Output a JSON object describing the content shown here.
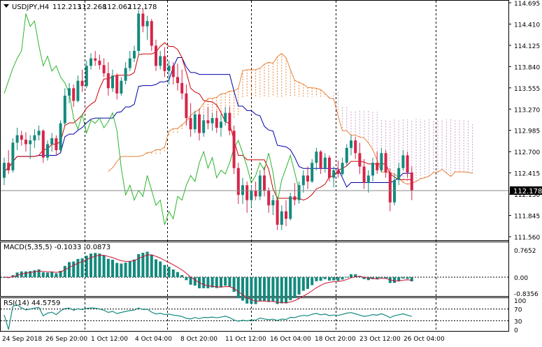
{
  "header": {
    "symbol": "USDJPY,H4",
    "open": "112.213",
    "high": "112.268",
    "low": "112.062",
    "close": "112.178"
  },
  "current_price_label": "112.178",
  "price_axis": {
    "labels": [
      "114.695",
      "114.410",
      "114.125",
      "113.840",
      "113.555",
      "113.270",
      "112.985",
      "112.700",
      "112.415",
      "112.130",
      "111.845",
      "111.560"
    ]
  },
  "time_axis": {
    "labels": [
      "24 Sep 2018",
      "26 Sep 20:00",
      "1 Oct 12:00",
      "4 Oct 04:00",
      "8 Oct 20:00",
      "11 Oct 12:00",
      "16 Oct 04:00",
      "18 Oct 20:00",
      "23 Oct 12:00",
      "26 Oct 04:00"
    ]
  },
  "macd": {
    "label": "MACD(5,35,5) -0.1033 -0.0873",
    "axis_labels": [
      "0.7652",
      "0.00",
      "-0.8356"
    ]
  },
  "rsi": {
    "label": "RSI(14) 44.5759",
    "axis_labels": [
      "100",
      "70",
      "30",
      "0"
    ]
  },
  "colors": {
    "bull_candle": "#138a7d",
    "bear_candle": "#d6254a",
    "tenkan": "#cc0000",
    "kijun": "#0000aa",
    "chikou": "#2bb52b",
    "cloud_a": "#e8833a",
    "cloud_b": "#c9a0c9",
    "macd_hist": "#138a7d",
    "macd_signal": "#cc1133",
    "rsi_line": "#138a7d"
  },
  "chart_data": {
    "type": "candlestick",
    "symbol": "USDJPY",
    "timeframe": "H4",
    "ylim": [
      111.56,
      114.695
    ],
    "last_close": 112.178,
    "bars": [
      {
        "o": 112.35,
        "h": 112.62,
        "l": 112.25,
        "c": 112.55
      },
      {
        "o": 112.55,
        "h": 112.72,
        "l": 112.4,
        "c": 112.45
      },
      {
        "o": 112.45,
        "h": 112.88,
        "l": 112.42,
        "c": 112.82
      },
      {
        "o": 112.82,
        "h": 113.02,
        "l": 112.72,
        "c": 112.92
      },
      {
        "o": 112.92,
        "h": 112.98,
        "l": 112.78,
        "c": 112.86
      },
      {
        "o": 112.86,
        "h": 112.96,
        "l": 112.7,
        "c": 112.8
      },
      {
        "o": 112.8,
        "h": 112.92,
        "l": 112.6,
        "c": 112.85
      },
      {
        "o": 112.85,
        "h": 113.0,
        "l": 112.75,
        "c": 112.92
      },
      {
        "o": 112.92,
        "h": 113.05,
        "l": 112.85,
        "c": 112.98
      },
      {
        "o": 112.98,
        "h": 113.0,
        "l": 112.55,
        "c": 112.62
      },
      {
        "o": 112.62,
        "h": 112.85,
        "l": 112.58,
        "c": 112.8
      },
      {
        "o": 112.8,
        "h": 112.95,
        "l": 112.7,
        "c": 112.88
      },
      {
        "o": 112.88,
        "h": 112.92,
        "l": 112.65,
        "c": 112.72
      },
      {
        "o": 112.72,
        "h": 113.12,
        "l": 112.7,
        "c": 113.08
      },
      {
        "o": 113.08,
        "h": 113.55,
        "l": 113.05,
        "c": 113.45
      },
      {
        "o": 113.45,
        "h": 113.62,
        "l": 113.35,
        "c": 113.55
      },
      {
        "o": 113.55,
        "h": 113.6,
        "l": 113.3,
        "c": 113.38
      },
      {
        "o": 113.38,
        "h": 113.72,
        "l": 113.36,
        "c": 113.65
      },
      {
        "o": 113.65,
        "h": 113.8,
        "l": 113.5,
        "c": 113.58
      },
      {
        "o": 113.58,
        "h": 113.92,
        "l": 113.55,
        "c": 113.85
      },
      {
        "o": 113.85,
        "h": 114.02,
        "l": 113.8,
        "c": 113.95
      },
      {
        "o": 113.95,
        "h": 114.05,
        "l": 113.85,
        "c": 113.92
      },
      {
        "o": 113.92,
        "h": 114.0,
        "l": 113.8,
        "c": 113.86
      },
      {
        "o": 113.86,
        "h": 113.95,
        "l": 113.7,
        "c": 113.75
      },
      {
        "o": 113.75,
        "h": 113.9,
        "l": 113.45,
        "c": 113.55
      },
      {
        "o": 113.55,
        "h": 113.8,
        "l": 113.5,
        "c": 113.72
      },
      {
        "o": 113.72,
        "h": 113.75,
        "l": 113.4,
        "c": 113.48
      },
      {
        "o": 113.48,
        "h": 113.7,
        "l": 113.45,
        "c": 113.65
      },
      {
        "o": 113.65,
        "h": 113.9,
        "l": 113.6,
        "c": 113.82
      },
      {
        "o": 113.82,
        "h": 114.05,
        "l": 113.78,
        "c": 113.95
      },
      {
        "o": 113.95,
        "h": 114.12,
        "l": 113.9,
        "c": 114.05
      },
      {
        "o": 114.05,
        "h": 114.6,
        "l": 114.0,
        "c": 114.55
      },
      {
        "o": 114.55,
        "h": 114.62,
        "l": 114.3,
        "c": 114.38
      },
      {
        "o": 114.38,
        "h": 114.52,
        "l": 114.2,
        "c": 114.45
      },
      {
        "o": 114.45,
        "h": 114.48,
        "l": 114.05,
        "c": 114.12
      },
      {
        "o": 114.12,
        "h": 114.2,
        "l": 113.78,
        "c": 113.85
      },
      {
        "o": 113.85,
        "h": 114.05,
        "l": 113.8,
        "c": 113.98
      },
      {
        "o": 113.98,
        "h": 114.1,
        "l": 113.7,
        "c": 113.78
      },
      {
        "o": 113.78,
        "h": 113.92,
        "l": 113.6,
        "c": 113.85
      },
      {
        "o": 113.85,
        "h": 113.9,
        "l": 113.6,
        "c": 113.7
      },
      {
        "o": 113.7,
        "h": 113.88,
        "l": 113.52,
        "c": 113.62
      },
      {
        "o": 113.62,
        "h": 113.8,
        "l": 113.4,
        "c": 113.48
      },
      {
        "o": 113.48,
        "h": 113.6,
        "l": 113.05,
        "c": 113.15
      },
      {
        "o": 113.15,
        "h": 113.35,
        "l": 112.9,
        "c": 113.0
      },
      {
        "o": 113.0,
        "h": 113.25,
        "l": 112.95,
        "c": 113.2
      },
      {
        "o": 113.2,
        "h": 113.28,
        "l": 112.85,
        "c": 112.95
      },
      {
        "o": 112.95,
        "h": 113.2,
        "l": 112.9,
        "c": 113.12
      },
      {
        "o": 113.12,
        "h": 113.3,
        "l": 113.0,
        "c": 113.08
      },
      {
        "o": 113.08,
        "h": 113.22,
        "l": 112.98,
        "c": 113.15
      },
      {
        "o": 113.15,
        "h": 113.25,
        "l": 112.95,
        "c": 113.02
      },
      {
        "o": 113.02,
        "h": 113.2,
        "l": 112.9,
        "c": 113.1
      },
      {
        "o": 113.1,
        "h": 113.3,
        "l": 113.05,
        "c": 113.22
      },
      {
        "o": 113.22,
        "h": 113.3,
        "l": 112.92,
        "c": 112.98
      },
      {
        "o": 112.98,
        "h": 113.05,
        "l": 112.4,
        "c": 112.48
      },
      {
        "o": 112.48,
        "h": 112.55,
        "l": 112.0,
        "c": 112.12
      },
      {
        "o": 112.12,
        "h": 112.35,
        "l": 112.0,
        "c": 112.25
      },
      {
        "o": 112.25,
        "h": 112.3,
        "l": 111.88,
        "c": 112.05
      },
      {
        "o": 112.05,
        "h": 112.25,
        "l": 111.95,
        "c": 112.18
      },
      {
        "o": 112.18,
        "h": 112.3,
        "l": 112.05,
        "c": 112.1
      },
      {
        "o": 112.1,
        "h": 112.45,
        "l": 112.05,
        "c": 112.38
      },
      {
        "o": 112.38,
        "h": 112.5,
        "l": 112.1,
        "c": 112.18
      },
      {
        "o": 112.18,
        "h": 112.22,
        "l": 111.88,
        "c": 111.98
      },
      {
        "o": 111.98,
        "h": 112.12,
        "l": 111.85,
        "c": 112.05
      },
      {
        "o": 112.05,
        "h": 112.1,
        "l": 111.65,
        "c": 111.72
      },
      {
        "o": 111.72,
        "h": 111.98,
        "l": 111.65,
        "c": 111.9
      },
      {
        "o": 111.9,
        "h": 112.05,
        "l": 111.7,
        "c": 111.8
      },
      {
        "o": 111.8,
        "h": 112.15,
        "l": 111.78,
        "c": 112.1
      },
      {
        "o": 112.1,
        "h": 112.28,
        "l": 111.98,
        "c": 112.05
      },
      {
        "o": 112.05,
        "h": 112.3,
        "l": 112.0,
        "c": 112.25
      },
      {
        "o": 112.25,
        "h": 112.45,
        "l": 112.15,
        "c": 112.38
      },
      {
        "o": 112.38,
        "h": 112.5,
        "l": 112.2,
        "c": 112.3
      },
      {
        "o": 112.3,
        "h": 112.6,
        "l": 112.28,
        "c": 112.55
      },
      {
        "o": 112.55,
        "h": 112.75,
        "l": 112.45,
        "c": 112.7
      },
      {
        "o": 112.7,
        "h": 112.72,
        "l": 112.4,
        "c": 112.48
      },
      {
        "o": 112.48,
        "h": 112.68,
        "l": 112.42,
        "c": 112.62
      },
      {
        "o": 112.62,
        "h": 112.65,
        "l": 112.3,
        "c": 112.35
      },
      {
        "o": 112.35,
        "h": 112.5,
        "l": 112.22,
        "c": 112.45
      },
      {
        "o": 112.45,
        "h": 112.58,
        "l": 112.35,
        "c": 112.4
      },
      {
        "o": 112.4,
        "h": 112.62,
        "l": 112.38,
        "c": 112.55
      },
      {
        "o": 112.55,
        "h": 112.8,
        "l": 112.5,
        "c": 112.75
      },
      {
        "o": 112.75,
        "h": 112.92,
        "l": 112.65,
        "c": 112.85
      },
      {
        "o": 112.85,
        "h": 112.9,
        "l": 112.6,
        "c": 112.68
      },
      {
        "o": 112.68,
        "h": 112.82,
        "l": 112.4,
        "c": 112.5
      },
      {
        "o": 112.5,
        "h": 112.6,
        "l": 112.2,
        "c": 112.28
      },
      {
        "o": 112.28,
        "h": 112.45,
        "l": 112.15,
        "c": 112.38
      },
      {
        "o": 112.38,
        "h": 112.62,
        "l": 112.3,
        "c": 112.55
      },
      {
        "o": 112.55,
        "h": 112.7,
        "l": 112.4,
        "c": 112.45
      },
      {
        "o": 112.45,
        "h": 112.75,
        "l": 112.42,
        "c": 112.68
      },
      {
        "o": 112.68,
        "h": 112.72,
        "l": 112.35,
        "c": 112.42
      },
      {
        "o": 112.42,
        "h": 112.48,
        "l": 111.9,
        "c": 112.02
      },
      {
        "o": 112.02,
        "h": 112.4,
        "l": 111.98,
        "c": 112.32
      },
      {
        "o": 112.32,
        "h": 112.55,
        "l": 112.25,
        "c": 112.48
      },
      {
        "o": 112.48,
        "h": 112.72,
        "l": 112.45,
        "c": 112.65
      },
      {
        "o": 112.65,
        "h": 112.7,
        "l": 112.35,
        "c": 112.42
      },
      {
        "o": 112.42,
        "h": 112.5,
        "l": 112.05,
        "c": 112.18
      }
    ]
  }
}
